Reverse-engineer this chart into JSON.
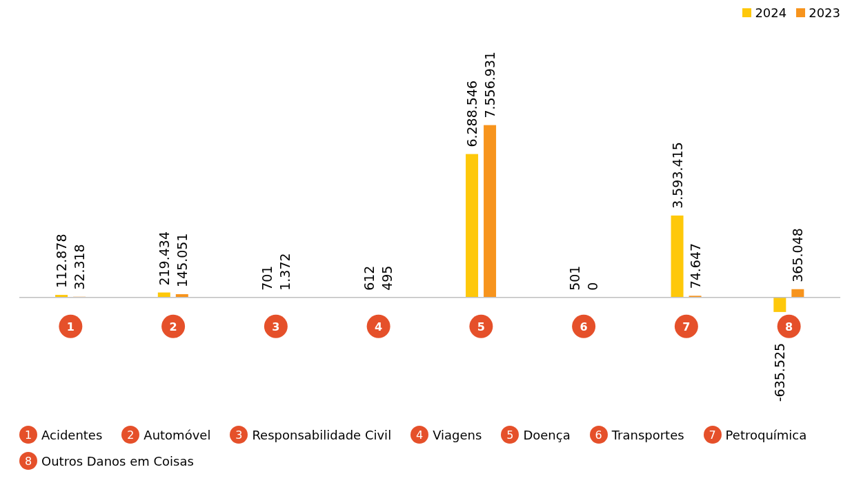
{
  "chart_data": {
    "type": "bar",
    "categories": [
      "1",
      "2",
      "3",
      "4",
      "5",
      "6",
      "7",
      "8"
    ],
    "series": [
      {
        "name": "2024",
        "color": "#fec80a",
        "values": [
          112878,
          219434,
          701,
          612,
          6288546,
          501,
          3593415,
          -635525
        ],
        "value_labels": [
          "112.878",
          "219.434",
          "701",
          "612",
          "6.288.546",
          "501",
          "3.593.415",
          "-635.525"
        ]
      },
      {
        "name": "2023",
        "color": "#f7941d",
        "values": [
          32318,
          145051,
          1372,
          495,
          7556931,
          0,
          74647,
          365048
        ],
        "value_labels": [
          "32.318",
          "145.051",
          "1.372",
          "495",
          "7.556.931",
          "0",
          "74.647",
          "365.048"
        ]
      }
    ],
    "annotations": [
      "Acidentes",
      "Automóvel",
      "Responsabilidade Civil",
      "Viagens",
      "Doença",
      "Transportes",
      "Petroquímica",
      "Outros Danos em Coisas"
    ],
    "legend": "top right",
    "grid": false
  }
}
